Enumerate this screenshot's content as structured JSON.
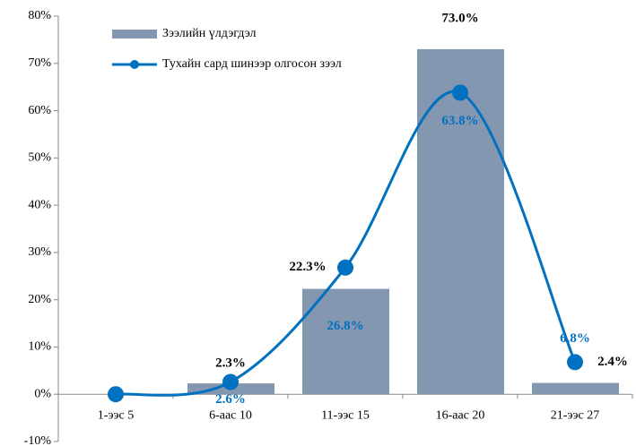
{
  "chart_data": {
    "type": "bar-line",
    "categories": [
      "1-ээс 5",
      "6-аас 10",
      "11-ээс 15",
      "16-аас 20",
      "21-ээс 27"
    ],
    "series": [
      {
        "name": "Зээлийн үлдэгдэл",
        "type": "bar",
        "color": "#8497b0",
        "values": [
          0,
          2.3,
          22.3,
          73.0,
          2.4
        ],
        "value_labels": [
          null,
          "2.3%",
          "22.3%",
          "73.0%",
          "2.4%"
        ]
      },
      {
        "name": "Тухайн сард шинээр олгосон зээл",
        "type": "line",
        "color": "#0070c0",
        "values": [
          0,
          2.6,
          26.8,
          63.8,
          6.8
        ],
        "value_labels": [
          null,
          "2.6%",
          "26.8%",
          "63.8%",
          "6.8%"
        ]
      }
    ],
    "ylim": [
      -10,
      80
    ],
    "yticks": [
      {
        "value": -10,
        "label": "-10%"
      },
      {
        "value": 0,
        "label": "0%"
      },
      {
        "value": 10,
        "label": "10%"
      },
      {
        "value": 20,
        "label": "20%"
      },
      {
        "value": 30,
        "label": "30%"
      },
      {
        "value": 40,
        "label": "40%"
      },
      {
        "value": 50,
        "label": "50%"
      },
      {
        "value": 60,
        "label": "60%"
      },
      {
        "value": 70,
        "label": "70%"
      },
      {
        "value": 80,
        "label": "80%"
      }
    ],
    "legend": "top-left"
  }
}
